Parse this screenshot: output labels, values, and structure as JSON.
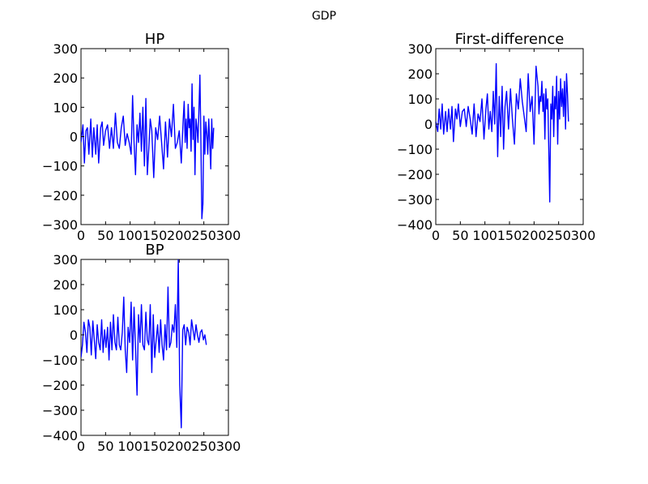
{
  "figure": {
    "suptitle": "GDP",
    "series_color": "#0000ff"
  },
  "chart_data": [
    {
      "type": "line",
      "title": "HP",
      "xlabel": "",
      "ylabel": "",
      "xlim": [
        0,
        300
      ],
      "ylim": [
        -300,
        300
      ],
      "xticks": [
        0,
        50,
        100,
        150,
        200,
        250,
        300
      ],
      "xtick_labels": [
        "0",
        "50",
        "100",
        "150",
        "200",
        "250",
        "300"
      ],
      "yticks": [
        -300,
        -200,
        -100,
        0,
        100,
        200,
        300
      ],
      "ytick_labels": [
        "−300",
        "−200",
        "−100",
        "0",
        "100",
        "200",
        "300"
      ],
      "grid": false,
      "series": [
        {
          "x": [
            0,
            4,
            7,
            10,
            13,
            16,
            20,
            23,
            26,
            30,
            33,
            36,
            40,
            43,
            46,
            50,
            54,
            58,
            62,
            66,
            70,
            74,
            78,
            82,
            86,
            90,
            94,
            98,
            102,
            105,
            108,
            111,
            114,
            117,
            120,
            123,
            126,
            129,
            132,
            135,
            138,
            141,
            144,
            148,
            152,
            156,
            160,
            164,
            168,
            172,
            176,
            180,
            184,
            188,
            192,
            196,
            200,
            204,
            208,
            210,
            212,
            214,
            216,
            218,
            220,
            222,
            224,
            226,
            228,
            230,
            232,
            234,
            236,
            238,
            240,
            242,
            244,
            246,
            248,
            250,
            252,
            254,
            256,
            258,
            260,
            262,
            264,
            266,
            268,
            270
          ],
          "y": [
            -20,
            40,
            -90,
            20,
            30,
            -60,
            60,
            -70,
            30,
            -60,
            40,
            -90,
            30,
            50,
            -30,
            20,
            40,
            -40,
            30,
            -40,
            80,
            -20,
            -40,
            30,
            70,
            -30,
            10,
            -20,
            -60,
            140,
            -20,
            -130,
            40,
            -20,
            80,
            -50,
            100,
            -100,
            130,
            -130,
            -40,
            60,
            20,
            -140,
            30,
            -10,
            70,
            -20,
            -110,
            50,
            -70,
            60,
            0,
            110,
            -40,
            -20,
            20,
            -90,
            60,
            120,
            -20,
            60,
            -40,
            110,
            30,
            60,
            -50,
            180,
            -10,
            100,
            -130,
            60,
            30,
            -20,
            90,
            210,
            -10,
            -280,
            -230,
            70,
            -60,
            50,
            10,
            -60,
            60,
            -20,
            -110,
            60,
            -40,
            30
          ]
        }
      ]
    },
    {
      "type": "line",
      "title": "First-difference",
      "xlabel": "",
      "ylabel": "",
      "xlim": [
        0,
        300
      ],
      "ylim": [
        -400,
        300
      ],
      "xticks": [
        0,
        50,
        100,
        150,
        200,
        250,
        300
      ],
      "xtick_labels": [
        "0",
        "50",
        "100",
        "150",
        "200",
        "250",
        "300"
      ],
      "yticks": [
        -400,
        -300,
        -200,
        -100,
        0,
        100,
        200,
        300
      ],
      "ytick_labels": [
        "−400",
        "−300",
        "−200",
        "−100",
        "0",
        "100",
        "200",
        "300"
      ],
      "grid": false,
      "series": [
        {
          "x": [
            0,
            4,
            7,
            10,
            13,
            16,
            20,
            23,
            26,
            30,
            33,
            36,
            40,
            43,
            46,
            50,
            54,
            58,
            62,
            66,
            70,
            74,
            78,
            82,
            86,
            90,
            94,
            98,
            102,
            105,
            108,
            111,
            114,
            117,
            120,
            123,
            126,
            129,
            132,
            135,
            138,
            141,
            144,
            148,
            152,
            156,
            160,
            164,
            168,
            172,
            176,
            180,
            184,
            188,
            192,
            196,
            200,
            204,
            208,
            210,
            212,
            214,
            216,
            218,
            220,
            222,
            224,
            226,
            228,
            230,
            232,
            234,
            236,
            238,
            240,
            242,
            244,
            246,
            248,
            250,
            252,
            254,
            256,
            258,
            260,
            262,
            264,
            266,
            268,
            270
          ],
          "y": [
            10,
            -30,
            60,
            -20,
            80,
            -40,
            50,
            -30,
            60,
            -20,
            70,
            -70,
            60,
            20,
            80,
            -10,
            50,
            60,
            -10,
            70,
            20,
            -40,
            80,
            -50,
            40,
            10,
            100,
            -60,
            60,
            120,
            -20,
            50,
            -30,
            130,
            0,
            240,
            -130,
            110,
            -50,
            150,
            -100,
            70,
            130,
            -20,
            140,
            20,
            -80,
            120,
            60,
            180,
            90,
            30,
            -30,
            200,
            50,
            110,
            -80,
            230,
            150,
            40,
            110,
            90,
            170,
            50,
            120,
            -60,
            140,
            60,
            100,
            -100,
            -310,
            80,
            20,
            150,
            -50,
            110,
            60,
            190,
            -80,
            130,
            20,
            180,
            70,
            140,
            30,
            170,
            -20,
            200,
            120,
            10
          ]
        }
      ]
    },
    {
      "type": "line",
      "title": "BP",
      "xlabel": "",
      "ylabel": "",
      "xlim": [
        0,
        300
      ],
      "ylim": [
        -400,
        300
      ],
      "xticks": [
        0,
        50,
        100,
        150,
        200,
        250,
        300
      ],
      "xtick_labels": [
        "0",
        "50",
        "100",
        "150",
        "200",
        "250",
        "300"
      ],
      "yticks": [
        -400,
        -300,
        -200,
        -100,
        0,
        100,
        200,
        300
      ],
      "ytick_labels": [
        "−400",
        "−300",
        "−200",
        "−100",
        "0",
        "100",
        "200",
        "300"
      ],
      "grid": false,
      "series": [
        {
          "x": [
            0,
            3,
            6,
            9,
            12,
            15,
            18,
            21,
            24,
            27,
            30,
            33,
            36,
            39,
            42,
            45,
            48,
            51,
            54,
            57,
            60,
            63,
            66,
            69,
            72,
            75,
            78,
            81,
            84,
            87,
            90,
            93,
            96,
            99,
            102,
            105,
            108,
            111,
            114,
            117,
            120,
            123,
            126,
            129,
            132,
            135,
            138,
            141,
            144,
            147,
            150,
            153,
            156,
            159,
            162,
            165,
            168,
            171,
            174,
            177,
            180,
            183,
            186,
            189,
            192,
            195,
            198,
            201,
            204,
            207,
            210,
            213,
            216,
            219,
            222,
            225,
            228,
            231,
            234,
            237,
            240,
            243,
            246,
            249,
            252,
            255
          ],
          "y": [
            -90,
            -40,
            50,
            10,
            -70,
            60,
            30,
            -80,
            55,
            -20,
            -95,
            40,
            -30,
            -60,
            60,
            -70,
            20,
            -50,
            30,
            -100,
            50,
            -60,
            80,
            -30,
            -60,
            70,
            -40,
            -60,
            10,
            150,
            -60,
            -150,
            30,
            -30,
            130,
            -100,
            110,
            -50,
            -240,
            80,
            -30,
            120,
            -40,
            -60,
            90,
            -20,
            -40,
            120,
            -150,
            80,
            -90,
            -20,
            40,
            -70,
            60,
            -40,
            -100,
            40,
            -60,
            190,
            -50,
            -30,
            40,
            10,
            120,
            -50,
            300,
            -200,
            -370,
            20,
            40,
            -40,
            30,
            10,
            -40,
            60,
            20,
            -20,
            40,
            0,
            -30,
            10,
            20,
            -20,
            0,
            -40
          ]
        }
      ]
    }
  ]
}
